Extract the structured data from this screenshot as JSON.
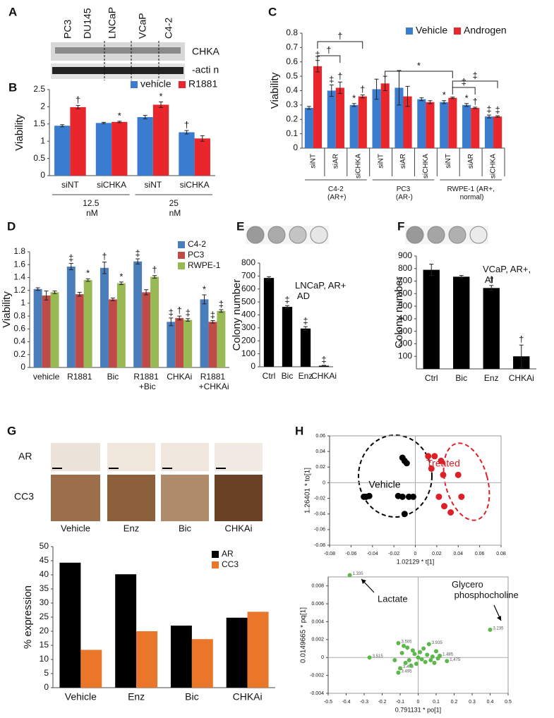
{
  "blot": {
    "panel": "A",
    "lanes": [
      "PC3",
      "DU145",
      "LNCaP",
      "VCaP",
      "C4-2"
    ],
    "bands": [
      "CHKA",
      "-acti n"
    ]
  },
  "ihc": {
    "panel": "G",
    "rows": [
      "AR",
      "CC3"
    ]
  },
  "chart_data": [
    {
      "type": "bar",
      "panel": "B",
      "ylabel": "Viability",
      "categories": [
        "siNT",
        "siCHKA",
        "siNT",
        "siCHKA"
      ],
      "groups": [
        "12.5 nM",
        "25 nM"
      ],
      "series": [
        {
          "name": "vehicle",
          "color": "#3a7dd0",
          "values": [
            1.45,
            1.53,
            1.7,
            1.26
          ],
          "errors": [
            0.03,
            0.02,
            0.05,
            0.05
          ],
          "annotations": [
            null,
            null,
            null,
            "†"
          ]
        },
        {
          "name": "R1881",
          "color": "#e8262b",
          "values": [
            1.99,
            1.56,
            2.06,
            1.08
          ],
          "errors": [
            0.05,
            0.02,
            0.08,
            0.08
          ],
          "annotations": [
            "†",
            "*",
            "*",
            null
          ]
        }
      ],
      "ylim": [
        0,
        2.5
      ],
      "yticks": [
        0,
        0.5,
        1,
        1.5,
        2,
        2.5
      ]
    },
    {
      "type": "bar",
      "panel": "C",
      "ylabel": "Viability",
      "categories": [
        "siNT",
        "siAR",
        "siCHKA",
        "siNT",
        "siAR",
        "siCHKA",
        "siNT",
        "siAR",
        "siCHKA"
      ],
      "groups": [
        "C4-2 (AR+)",
        "PC3 (AR-)",
        "RWPE-1 (AR+, normal)"
      ],
      "series": [
        {
          "name": "Vehicle",
          "color": "#3a7dd0",
          "values": [
            0.28,
            0.4,
            0.3,
            0.41,
            0.42,
            0.34,
            0.32,
            0.3,
            0.22
          ],
          "errors": [
            0.01,
            0.04,
            0.01,
            0.07,
            0.12,
            0.01,
            0.01,
            0.01,
            0.01
          ],
          "annotations": [
            null,
            "‡",
            "*",
            null,
            null,
            null,
            "*",
            "*",
            "‡"
          ]
        },
        {
          "name": "Androgen",
          "color": "#e8262b",
          "values": [
            0.57,
            0.42,
            0.36,
            0.45,
            0.36,
            0.32,
            0.35,
            0.28,
            0.22
          ],
          "errors": [
            0.04,
            0.04,
            0.01,
            0.05,
            0.07,
            0.01,
            0.005,
            0.005,
            0.005
          ],
          "annotations": [
            "‡",
            "†",
            "†",
            null,
            null,
            null,
            null,
            "†",
            "‡"
          ]
        }
      ],
      "brackets": [
        "†",
        "†",
        "*",
        "‡",
        "‡"
      ],
      "ylim": [
        0,
        0.8
      ],
      "yticks": [
        0,
        0.1,
        0.2,
        0.3,
        0.4,
        0.5,
        0.6,
        0.7,
        0.8
      ]
    },
    {
      "type": "bar",
      "panel": "D",
      "ylabel": "Viability",
      "categories": [
        "vehicle",
        "R1881",
        "Bic",
        "R1881 +Bic",
        "CHKAi",
        "R1881 +CHKAi"
      ],
      "series": [
        {
          "name": "C4-2",
          "color": "#4a7ebb",
          "values": [
            1.22,
            1.57,
            1.55,
            1.65,
            0.71,
            1.06
          ],
          "errors": [
            0.02,
            0.05,
            0.09,
            0.04,
            0.06,
            0.07
          ],
          "annotations": [
            null,
            "‡",
            "†",
            "‡",
            "‡",
            "*"
          ]
        },
        {
          "name": "PC3",
          "color": "#be4b48",
          "values": [
            1.12,
            1.14,
            1.06,
            1.17,
            0.77,
            0.71
          ],
          "errors": [
            0.07,
            0.03,
            0.02,
            0.04,
            0.03,
            0.02
          ],
          "annotations": [
            null,
            null,
            null,
            null,
            "†",
            "‡"
          ]
        },
        {
          "name": "RWPE-1",
          "color": "#98b954",
          "values": [
            1.17,
            1.36,
            1.31,
            1.41,
            0.74,
            0.88
          ],
          "errors": [
            0.02,
            0.02,
            0.02,
            0.02,
            0.02,
            0.02
          ],
          "annotations": [
            null,
            "*",
            "*",
            "†",
            "‡",
            "‡"
          ]
        }
      ],
      "ylim": [
        0,
        1.8
      ],
      "yticks": [
        0,
        0.2,
        0.4,
        0.6,
        0.8,
        1,
        1.2,
        1.4,
        1.6,
        1.8
      ]
    },
    {
      "type": "bar",
      "panel": "E",
      "ylabel": "Colony number",
      "note": "LNCaP, AR+ AD",
      "categories": [
        "Ctrl",
        "Bic",
        "Enz",
        "CHKAi"
      ],
      "values": [
        685,
        462,
        295,
        8
      ],
      "errors": [
        10,
        10,
        15,
        3
      ],
      "annotations": [
        null,
        "‡",
        "‡",
        "‡"
      ],
      "color": "#000000",
      "ylim": [
        0,
        800
      ],
      "yticks": [
        0,
        100,
        200,
        300,
        400,
        500,
        600,
        700,
        800
      ]
    },
    {
      "type": "bar",
      "panel": "F",
      "ylabel": "Colony number",
      "note": "VCaP, AR+, AI",
      "categories": [
        "Ctrl",
        "Bic",
        "Enz",
        "CHKAi"
      ],
      "values": [
        790,
        735,
        645,
        100
      ],
      "errors": [
        45,
        10,
        20,
        90
      ],
      "annotations": [
        null,
        null,
        "†",
        "†"
      ],
      "color": "#000000",
      "ylim": [
        0,
        900
      ],
      "yticks": [
        100,
        200,
        300,
        400,
        500,
        600,
        700,
        800,
        900
      ]
    },
    {
      "type": "bar",
      "ylabel": "% expression",
      "categories": [
        "Vehicle",
        "Enz",
        "Bic",
        "CHKAi"
      ],
      "series": [
        {
          "name": "AR",
          "color": "#000000",
          "values": [
            44.3,
            40.2,
            22,
            24.8
          ]
        },
        {
          "name": "CC3",
          "color": "#ea762a",
          "values": [
            13.4,
            20,
            17.2,
            26.9
          ]
        }
      ],
      "ylim": [
        0,
        50
      ],
      "yticks": [
        0,
        5,
        10,
        15,
        20,
        25,
        30,
        35,
        40,
        45,
        50
      ]
    },
    {
      "type": "scatter",
      "panel": "H",
      "xlabel": "1.02129 * t[1]",
      "ylabel": "1.26401 * to[1]",
      "series": [
        {
          "name": "Vehicle",
          "color": "#000000",
          "x": [
            -0.048,
            -0.046,
            -0.043,
            -0.012,
            -0.01,
            -0.008,
            -0.012,
            -0.006,
            -0.01,
            -0.016,
            -0.002
          ],
          "y": [
            -0.018,
            -0.018,
            -0.017,
            0.032,
            0.028,
            0.025,
            -0.018,
            -0.018,
            -0.04,
            -0.017,
            -0.018
          ]
        },
        {
          "name": "Treated",
          "color": "#dd1f26",
          "x": [
            0.012,
            0.018,
            0.024,
            0.015,
            0.026,
            0.04,
            0.043,
            0.022,
            0.027,
            0.033
          ],
          "y": [
            0.034,
            0.034,
            0.028,
            0.018,
            0.01,
            0.01,
            -0.018,
            -0.018,
            -0.03,
            -0.038
          ]
        }
      ],
      "xlim": [
        -0.08,
        0.08
      ],
      "xticks": [
        -0.08,
        -0.06,
        -0.04,
        -0.02,
        0,
        0.02,
        0.04,
        0.06,
        0.08
      ],
      "ylim": [
        -0.08,
        0.06
      ],
      "yticks": [
        -0.08,
        -0.06,
        -0.04,
        -0.02,
        0,
        0.02,
        0.04,
        0.06
      ]
    },
    {
      "type": "scatter",
      "xlabel": "0.791131 * po[1]",
      "ylabel": "0.0149665 * pq[1]",
      "notes": [
        "Lactate",
        "Glycero phosphocholine"
      ],
      "series": [
        {
          "color": "#5cb84a",
          "x": [
            -0.38,
            0.4,
            -0.27,
            -0.11,
            -0.08,
            -0.06,
            0.06,
            0.03,
            -0.03,
            0.1,
            0.12,
            0.16,
            -0.1,
            -0.11,
            -0.07,
            -0.05,
            0,
            0.02,
            0.05,
            0.08,
            -0.02,
            0.04,
            0.07,
            -0.09,
            -0.13,
            0.09,
            -0.01,
            0.11,
            0.01,
            -0.04
          ],
          "y": [
            0.0092,
            0.0031,
            0,
            0.0016,
            0.0013,
            0.0011,
            0.0015,
            0.001,
            0.0008,
            0.0007,
            0.0002,
            -0.0004,
            -0.0012,
            -0.0017,
            -0.0006,
            -0.0003,
            0,
            -0.0002,
            0.0003,
            0.0001,
            0.0004,
            -0.0005,
            -0.0003,
            0.0005,
            -0.0003,
            -0.0006,
            -0.0007,
            -0.0001,
            0.0006,
            -0.0009
          ],
          "point_labels": [
            "1.335",
            "3.235",
            "3.515",
            "3.505",
            null,
            null,
            "3.935",
            null,
            null,
            null,
            "1.485",
            "1.475",
            "3.475",
            "3.495",
            null,
            null,
            null,
            null,
            null,
            null,
            null,
            null,
            null,
            null,
            null,
            null,
            null,
            null,
            null,
            null
          ]
        }
      ],
      "xlim": [
        -0.5,
        0.5
      ],
      "xticks": [
        -0.5,
        -0.4,
        -0.3,
        -0.2,
        -0.1,
        0,
        0.1,
        0.2,
        0.3,
        0.4,
        0.5
      ],
      "ylim": [
        -0.004,
        0.009
      ],
      "yticks": [
        -0.004,
        -0.002,
        0,
        0.002,
        0.004,
        0.006,
        0.008
      ]
    }
  ]
}
